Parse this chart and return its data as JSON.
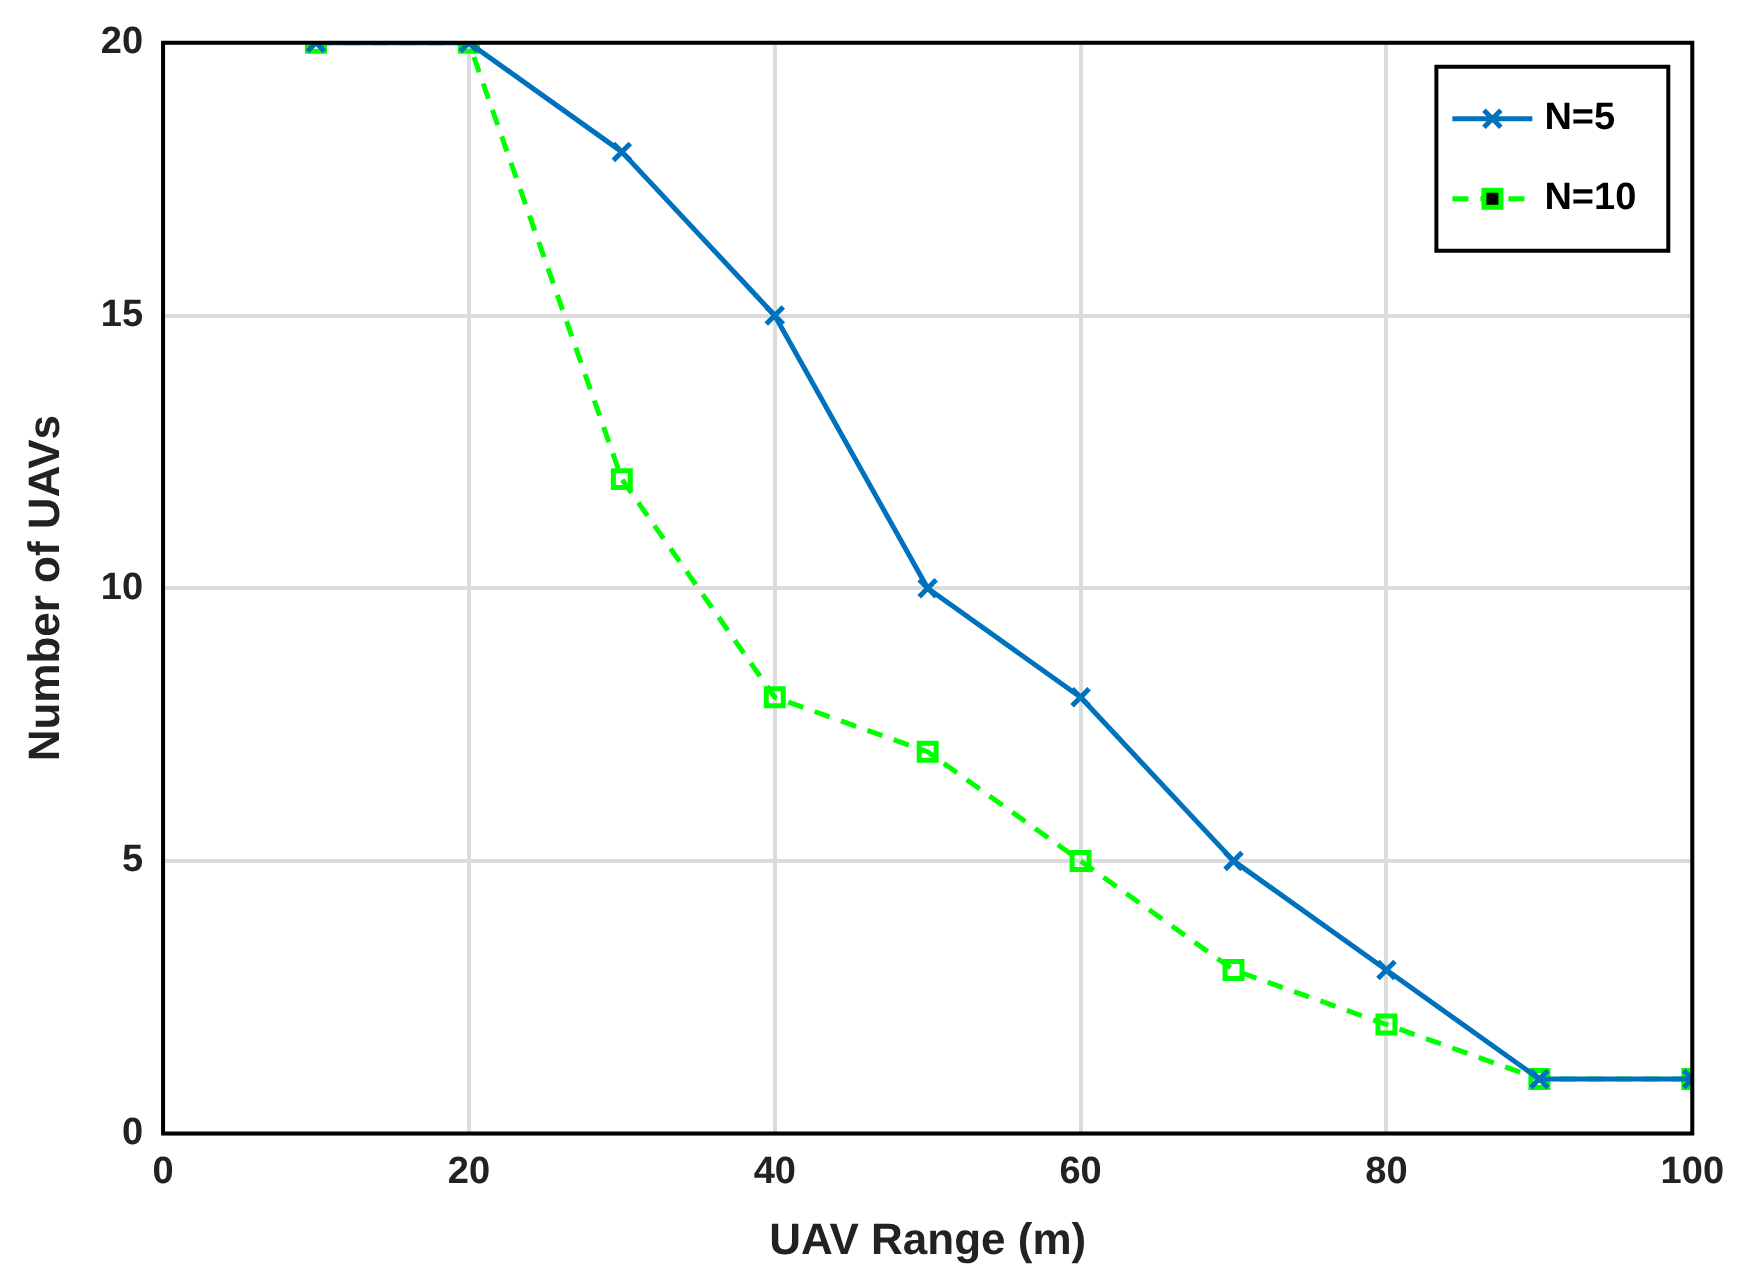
{
  "chart_data": {
    "type": "line",
    "xlabel": "UAV Range (m)",
    "ylabel": "Number of UAVs",
    "x": [
      10,
      20,
      30,
      40,
      50,
      60,
      70,
      80,
      90,
      100
    ],
    "series": [
      {
        "name": "N=5",
        "color": "#0072bd",
        "values": [
          20,
          20,
          18,
          15,
          10,
          8,
          5,
          3,
          1,
          1
        ],
        "marker": "cross",
        "line_style": "solid"
      },
      {
        "name": "N=10",
        "color": "#00ff00",
        "values": [
          20,
          20,
          12,
          8,
          7,
          5,
          3,
          2,
          1,
          1
        ],
        "marker": "square",
        "line_style": "dashed"
      }
    ],
    "xlim": [
      0,
      100
    ],
    "xticks": [
      0,
      20,
      40,
      60,
      80,
      100
    ],
    "ylim": [
      0,
      20
    ],
    "yticks": [
      0,
      5,
      10,
      15,
      20
    ],
    "grid": true,
    "legend": "top right"
  }
}
